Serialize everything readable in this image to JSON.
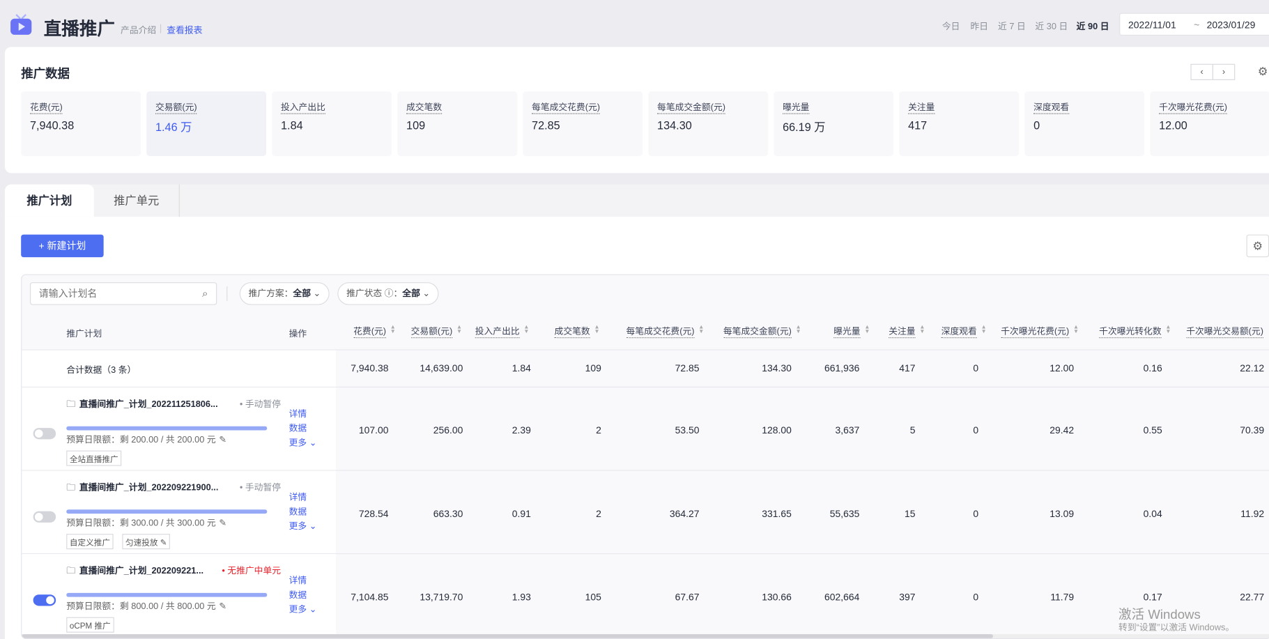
{
  "header": {
    "title": "直播推广",
    "intro_link": "产品介绍",
    "report_link": "查看报表",
    "presets": [
      "今日",
      "昨日",
      "近 7 日",
      "近 30 日",
      "近 90 日"
    ],
    "active_preset": "近 90 日",
    "date_start": "2022/11/01",
    "date_sep": "~",
    "date_end": "2023/01/29"
  },
  "promo_data": {
    "title": "推广数据",
    "metrics": [
      {
        "label": "花费(元)",
        "value": "7,940.38"
      },
      {
        "label": "交易额(元)",
        "value": "1.46 万"
      },
      {
        "label": "投入产出比",
        "value": "1.84"
      },
      {
        "label": "成交笔数",
        "value": "109"
      },
      {
        "label": "每笔成交花费(元)",
        "value": "72.85"
      },
      {
        "label": "每笔成交金额(元)",
        "value": "134.30"
      },
      {
        "label": "曝光量",
        "value": "66.19 万"
      },
      {
        "label": "关注量",
        "value": "417"
      },
      {
        "label": "深度观看",
        "value": "0"
      },
      {
        "label": "千次曝光花费(元)",
        "value": "12.00"
      }
    ],
    "prev": "‹",
    "next": "›"
  },
  "tabs": [
    {
      "label": "推广计划",
      "active": true
    },
    {
      "label": "推广单元",
      "active": false
    }
  ],
  "toolbar": {
    "new_plan": "+ 新建计划"
  },
  "filters": {
    "search_placeholder": "请输入计划名",
    "scheme_label": "推广方案：",
    "scheme_value": "全部",
    "status_label": "推广状态 ⓘ：",
    "status_value": "全部"
  },
  "table": {
    "plan_header": "推广计划",
    "op_header": "操作",
    "columns": [
      "花费(元)",
      "交易额(元)",
      "投入产出比",
      "成交笔数",
      "每笔成交花费(元)",
      "每笔成交金额(元)",
      "曝光量",
      "关注量",
      "深度观看",
      "千次曝光花费(元)",
      "千次曝光转化数",
      "千次曝光交易额(元)"
    ],
    "summary_label": "合计数据（3 条）",
    "summary": [
      "7,940.38",
      "14,639.00",
      "1.84",
      "109",
      "72.85",
      "134.30",
      "661,936",
      "417",
      "0",
      "12.00",
      "0.16",
      "22.12"
    ],
    "rows": [
      {
        "name": "直播间推广_计划_202211251806...",
        "status": "• 手动暂停",
        "status_color": "#8a8f99",
        "enabled": false,
        "budget": "预算日限额：剩 200.00 / 共 200.00 元",
        "tags": [
          "全站直播推广"
        ],
        "ops": [
          "详情",
          "数据",
          "更多 ⌄"
        ],
        "values": [
          "107.00",
          "256.00",
          "2.39",
          "2",
          "53.50",
          "128.00",
          "3,637",
          "5",
          "0",
          "29.42",
          "0.55",
          "70.39"
        ]
      },
      {
        "name": "直播间推广_计划_202209221900...",
        "status": "• 手动暂停",
        "status_color": "#8a8f99",
        "enabled": false,
        "budget": "预算日限额：剩 300.00 / 共 300.00 元",
        "tags": [
          "自定义推广",
          "匀速投放 ✎"
        ],
        "ops": [
          "详情",
          "数据",
          "更多 ⌄"
        ],
        "values": [
          "728.54",
          "663.30",
          "0.91",
          "2",
          "364.27",
          "331.65",
          "55,635",
          "15",
          "0",
          "13.09",
          "0.04",
          "11.92"
        ]
      },
      {
        "name": "直播间推广_计划_202209221...",
        "status": "• 无推广中单元",
        "status_color": "#e8232c",
        "enabled": true,
        "budget": "预算日限额：剩 800.00 / 共 800.00 元",
        "tags": [
          "oCPM 推广"
        ],
        "ops": [
          "详情",
          "数据",
          "更多 ⌄"
        ],
        "values": [
          "7,104.85",
          "13,719.70",
          "1.93",
          "105",
          "67.67",
          "130.66",
          "602,664",
          "397",
          "0",
          "11.79",
          "0.17",
          "22.77"
        ]
      }
    ]
  },
  "windows": {
    "line1": "激活 Windows",
    "line2": "转到“设置”以激活 Windows。"
  },
  "colors": {
    "accent": "#4e6ef2",
    "link": "#3d5af1",
    "warning": "#e8232c"
  }
}
